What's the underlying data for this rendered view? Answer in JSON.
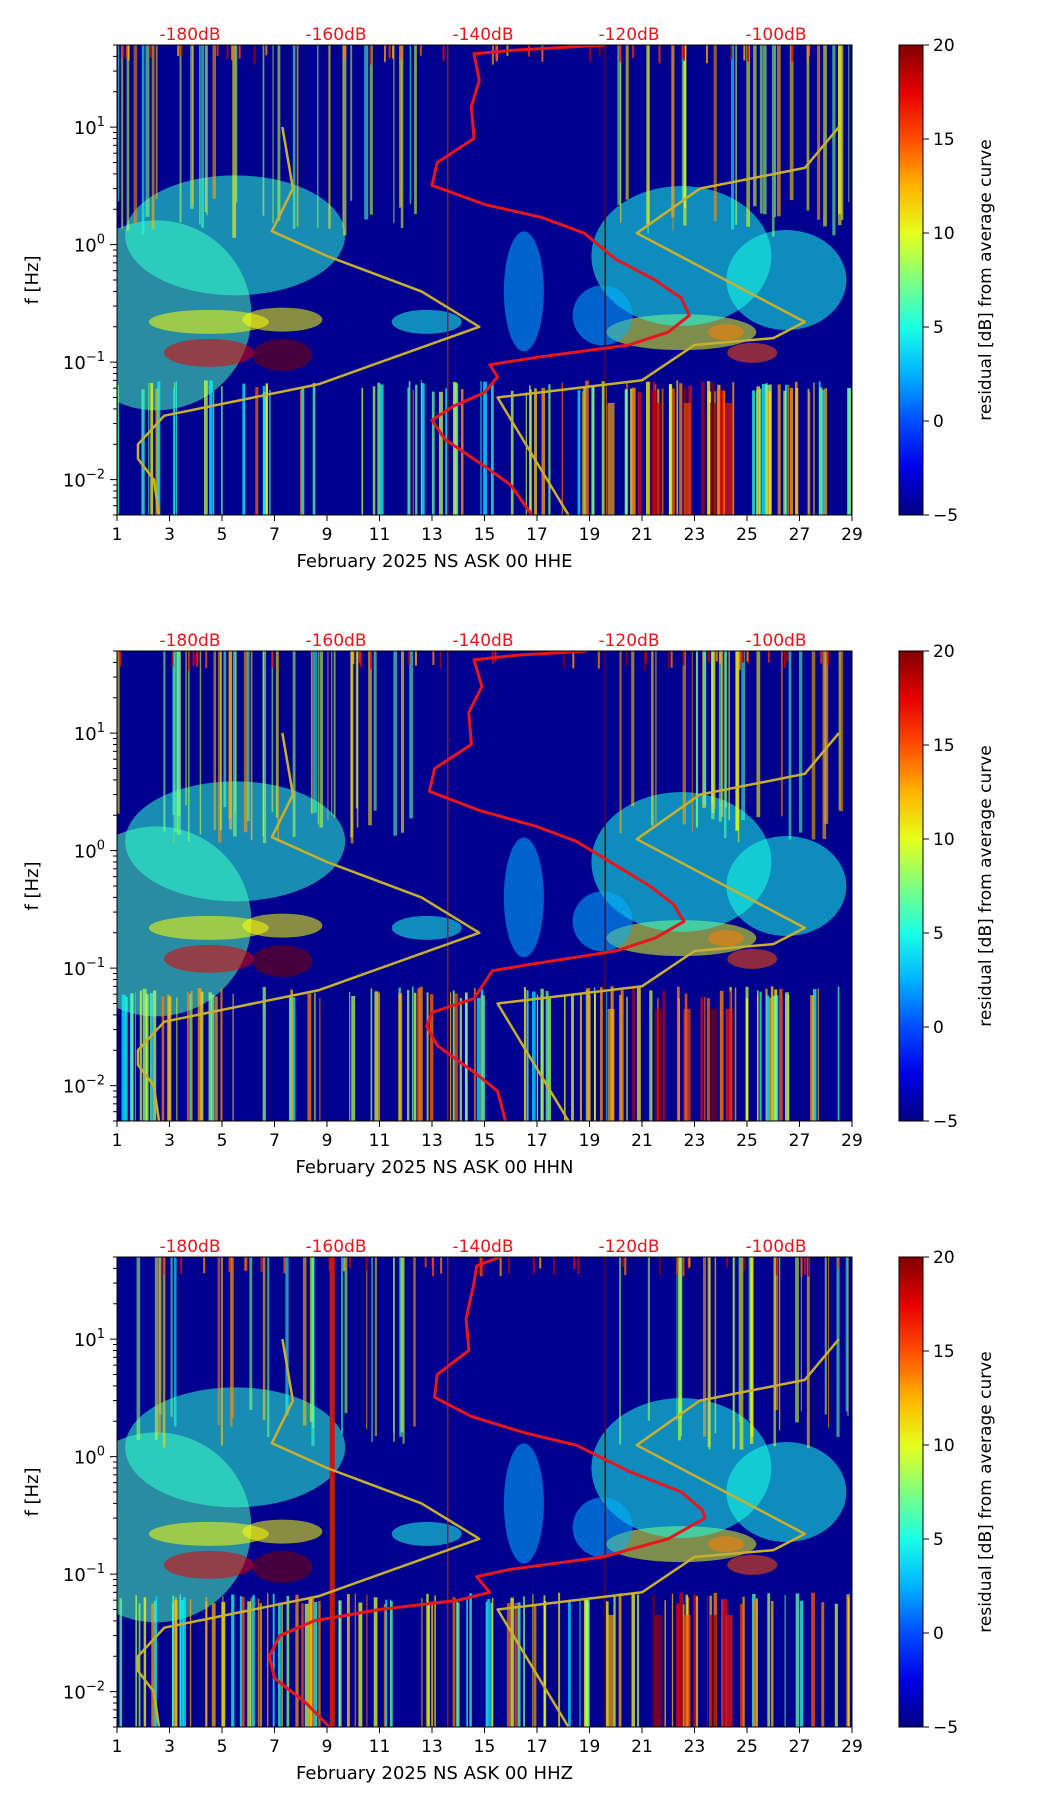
{
  "chart_data": [
    {
      "type": "heatmap",
      "title": "",
      "xlabel": "February 2025 NS ASK 00 HHE",
      "ylabel": "f [Hz]",
      "x_ticks": [
        "1",
        "3",
        "5",
        "7",
        "9",
        "11",
        "13",
        "15",
        "17",
        "19",
        "21",
        "23",
        "25",
        "27",
        "29"
      ],
      "xlim": [
        1,
        29
      ],
      "y_ticks": [
        {
          "value": 10,
          "base": "10",
          "exp": "1"
        },
        {
          "value": 1,
          "base": "10",
          "exp": "0"
        },
        {
          "value": 0.1,
          "base": "10",
          "exp": "−1"
        },
        {
          "value": 0.01,
          "base": "10",
          "exp": "−2"
        }
      ],
      "ylim": [
        0.005,
        50
      ],
      "db_scale_labels": [
        "-180dB",
        "-160dB",
        "-140dB",
        "-120dB",
        "-100dB"
      ],
      "colorbar": {
        "label": "residual [dB] from average curve",
        "ticks": [
          "20",
          "15",
          "10",
          "5",
          "0",
          "−5"
        ],
        "range": [
          -5,
          20
        ]
      },
      "series": [
        {
          "name": "noise model bounds",
          "color": "#c8b02e",
          "points": [
            [
              7.3,
              10
            ],
            [
              7.7,
              3
            ],
            [
              6.9,
              1.3
            ],
            [
              9.0,
              0.8
            ],
            [
              12.6,
              0.4
            ],
            [
              14.8,
              0.2
            ],
            [
              8.7,
              0.065
            ],
            [
              2.8,
              0.035
            ],
            [
              1.8,
              0.02
            ],
            [
              1.8,
              0.015
            ],
            [
              2.4,
              0.01
            ],
            [
              2.6,
              0.005
            ]
          ]
        },
        {
          "name": "noise model bounds",
          "color": "#c8b02e",
          "points": [
            [
              28.5,
              10
            ],
            [
              27.2,
              4.5
            ],
            [
              23.2,
              3
            ],
            [
              20.8,
              1.25
            ],
            [
              27.2,
              0.22
            ],
            [
              26.0,
              0.16
            ],
            [
              23.0,
              0.14
            ],
            [
              21.0,
              0.07
            ],
            [
              15.5,
              0.05
            ],
            [
              18.2,
              0.005
            ]
          ]
        },
        {
          "name": "mean PSD",
          "color": "#e8161c",
          "points": [
            [
              19.6,
              50
            ],
            [
              16.0,
              45
            ],
            [
              14.6,
              42
            ],
            [
              14.8,
              25
            ],
            [
              14.5,
              15
            ],
            [
              14.6,
              8
            ],
            [
              13.2,
              5
            ],
            [
              13.0,
              3.2
            ],
            [
              15.0,
              2.2
            ],
            [
              17.2,
              1.7
            ],
            [
              18.8,
              1.25
            ],
            [
              20.0,
              0.75
            ],
            [
              21.5,
              0.5
            ],
            [
              22.5,
              0.35
            ],
            [
              22.8,
              0.25
            ],
            [
              22.0,
              0.18
            ],
            [
              20.5,
              0.14
            ],
            [
              17.0,
              0.11
            ],
            [
              15.2,
              0.095
            ],
            [
              15.5,
              0.075
            ],
            [
              15.0,
              0.055
            ],
            [
              13.8,
              0.042
            ],
            [
              13.0,
              0.032
            ],
            [
              13.5,
              0.022
            ],
            [
              15.0,
              0.013
            ],
            [
              16.0,
              0.009
            ],
            [
              16.8,
              0.005
            ]
          ]
        }
      ],
      "vertical_lines": [
        {
          "x": 13.6,
          "color": "#9a1a10"
        },
        {
          "x": 19.6,
          "color": "#6b0000"
        }
      ],
      "colored_sections": [
        "low frequency vertical streaks",
        "strong band near 0.1 Hz at days 4-8",
        "storm band 0.1-0.3 Hz days 20-27"
      ]
    },
    {
      "type": "heatmap",
      "title": "",
      "xlabel": "February 2025 NS ASK 00 HHN",
      "ylabel": "f [Hz]",
      "x_ticks": [
        "1",
        "3",
        "5",
        "7",
        "9",
        "11",
        "13",
        "15",
        "17",
        "19",
        "21",
        "23",
        "25",
        "27",
        "29"
      ],
      "xlim": [
        1,
        29
      ],
      "y_ticks": [
        {
          "value": 10,
          "base": "10",
          "exp": "1"
        },
        {
          "value": 1,
          "base": "10",
          "exp": "0"
        },
        {
          "value": 0.1,
          "base": "10",
          "exp": "−1"
        },
        {
          "value": 0.01,
          "base": "10",
          "exp": "−2"
        }
      ],
      "ylim": [
        0.005,
        50
      ],
      "db_scale_labels": [
        "-180dB",
        "-160dB",
        "-140dB",
        "-120dB",
        "-100dB"
      ],
      "colorbar": {
        "label": "residual [dB] from average curve",
        "ticks": [
          "20",
          "15",
          "10",
          "5",
          "0",
          "−5"
        ],
        "range": [
          -5,
          20
        ]
      },
      "series": [
        {
          "name": "noise model bounds",
          "color": "#c8b02e",
          "points": [
            [
              7.3,
              10
            ],
            [
              7.7,
              3
            ],
            [
              6.9,
              1.3
            ],
            [
              9.0,
              0.8
            ],
            [
              12.6,
              0.4
            ],
            [
              14.8,
              0.2
            ],
            [
              8.7,
              0.065
            ],
            [
              2.8,
              0.035
            ],
            [
              1.8,
              0.02
            ],
            [
              1.8,
              0.015
            ],
            [
              2.4,
              0.01
            ],
            [
              2.6,
              0.005
            ]
          ]
        },
        {
          "name": "noise model bounds",
          "color": "#c8b02e",
          "points": [
            [
              28.5,
              10
            ],
            [
              27.2,
              4.5
            ],
            [
              23.2,
              3
            ],
            [
              20.8,
              1.25
            ],
            [
              27.2,
              0.22
            ],
            [
              26.0,
              0.16
            ],
            [
              23.0,
              0.14
            ],
            [
              21.0,
              0.07
            ],
            [
              15.5,
              0.05
            ],
            [
              18.2,
              0.005
            ]
          ]
        },
        {
          "name": "mean PSD",
          "color": "#e8161c",
          "points": [
            [
              18.9,
              50
            ],
            [
              16.2,
              46
            ],
            [
              14.6,
              42
            ],
            [
              14.9,
              25
            ],
            [
              14.4,
              15
            ],
            [
              14.5,
              8
            ],
            [
              13.1,
              5
            ],
            [
              12.9,
              3.2
            ],
            [
              14.8,
              2.2
            ],
            [
              17.0,
              1.6
            ],
            [
              18.5,
              1.2
            ],
            [
              20.0,
              0.75
            ],
            [
              21.3,
              0.5
            ],
            [
              22.2,
              0.35
            ],
            [
              22.6,
              0.25
            ],
            [
              21.5,
              0.18
            ],
            [
              20.0,
              0.14
            ],
            [
              17.0,
              0.11
            ],
            [
              15.3,
              0.095
            ],
            [
              15.0,
              0.075
            ],
            [
              14.6,
              0.055
            ],
            [
              13.0,
              0.042
            ],
            [
              12.8,
              0.032
            ],
            [
              13.2,
              0.022
            ],
            [
              14.6,
              0.013
            ],
            [
              15.5,
              0.009
            ],
            [
              15.8,
              0.005
            ]
          ]
        }
      ],
      "vertical_lines": [
        {
          "x": 13.6,
          "color": "#9a1a10"
        },
        {
          "x": 19.6,
          "color": "#6b0000"
        }
      ],
      "colored_sections": [
        "low frequency vertical streaks",
        "strong band near 0.1 Hz at days 4-8",
        "storm band 0.1-0.3 Hz days 20-27"
      ]
    },
    {
      "type": "heatmap",
      "title": "",
      "xlabel": "February 2025 NS ASK 00 HHZ",
      "ylabel": "f [Hz]",
      "x_ticks": [
        "1",
        "3",
        "5",
        "7",
        "9",
        "11",
        "13",
        "15",
        "17",
        "19",
        "21",
        "23",
        "25",
        "27",
        "29"
      ],
      "xlim": [
        1,
        29
      ],
      "y_ticks": [
        {
          "value": 10,
          "base": "10",
          "exp": "1"
        },
        {
          "value": 1,
          "base": "10",
          "exp": "0"
        },
        {
          "value": 0.1,
          "base": "10",
          "exp": "−1"
        },
        {
          "value": 0.01,
          "base": "10",
          "exp": "−2"
        }
      ],
      "ylim": [
        0.005,
        50
      ],
      "db_scale_labels": [
        "-180dB",
        "-160dB",
        "-140dB",
        "-120dB",
        "-100dB"
      ],
      "colorbar": {
        "label": "residual [dB] from average curve",
        "ticks": [
          "20",
          "15",
          "10",
          "5",
          "0",
          "−5"
        ],
        "range": [
          -5,
          20
        ]
      },
      "series": [
        {
          "name": "noise model bounds",
          "color": "#c8b02e",
          "points": [
            [
              7.3,
              10
            ],
            [
              7.7,
              3
            ],
            [
              6.9,
              1.3
            ],
            [
              9.0,
              0.8
            ],
            [
              12.6,
              0.4
            ],
            [
              14.8,
              0.2
            ],
            [
              8.7,
              0.065
            ],
            [
              2.8,
              0.035
            ],
            [
              1.8,
              0.02
            ],
            [
              1.8,
              0.015
            ],
            [
              2.4,
              0.01
            ],
            [
              2.6,
              0.005
            ]
          ]
        },
        {
          "name": "noise model bounds",
          "color": "#c8b02e",
          "points": [
            [
              28.5,
              10
            ],
            [
              27.2,
              4.5
            ],
            [
              23.2,
              3
            ],
            [
              20.8,
              1.25
            ],
            [
              27.2,
              0.22
            ],
            [
              26.0,
              0.16
            ],
            [
              23.0,
              0.14
            ],
            [
              21.0,
              0.07
            ],
            [
              15.5,
              0.05
            ],
            [
              18.2,
              0.005
            ]
          ]
        },
        {
          "name": "mean PSD",
          "color": "#e8161c",
          "points": [
            [
              15.6,
              50
            ],
            [
              14.7,
              42
            ],
            [
              14.6,
              30
            ],
            [
              14.3,
              15
            ],
            [
              14.4,
              8
            ],
            [
              13.2,
              5
            ],
            [
              13.1,
              3.2
            ],
            [
              14.5,
              2.2
            ],
            [
              16.5,
              1.6
            ],
            [
              18.5,
              1.25
            ],
            [
              20.5,
              0.75
            ],
            [
              22.5,
              0.5
            ],
            [
              23.3,
              0.35
            ],
            [
              23.4,
              0.3
            ],
            [
              22.0,
              0.2
            ],
            [
              19.5,
              0.14
            ],
            [
              16.0,
              0.11
            ],
            [
              14.7,
              0.095
            ],
            [
              15.2,
              0.07
            ],
            [
              14.0,
              0.06
            ],
            [
              11.0,
              0.05
            ],
            [
              8.5,
              0.04
            ],
            [
              7.2,
              0.03
            ],
            [
              6.8,
              0.02
            ],
            [
              7.0,
              0.013
            ],
            [
              8.2,
              0.008
            ],
            [
              9.1,
              0.005
            ]
          ]
        }
      ],
      "vertical_lines": [
        {
          "x": 13.6,
          "color": "#9a1a10"
        },
        {
          "x": 19.6,
          "color": "#6b0000"
        },
        {
          "x": 9.2,
          "color": "#c41a0e"
        }
      ],
      "colored_sections": [
        "low frequency vertical streaks",
        "strong band near 0.1 Hz at days 4-8",
        "storm band 0.1-0.3 Hz days 20-27"
      ]
    }
  ]
}
